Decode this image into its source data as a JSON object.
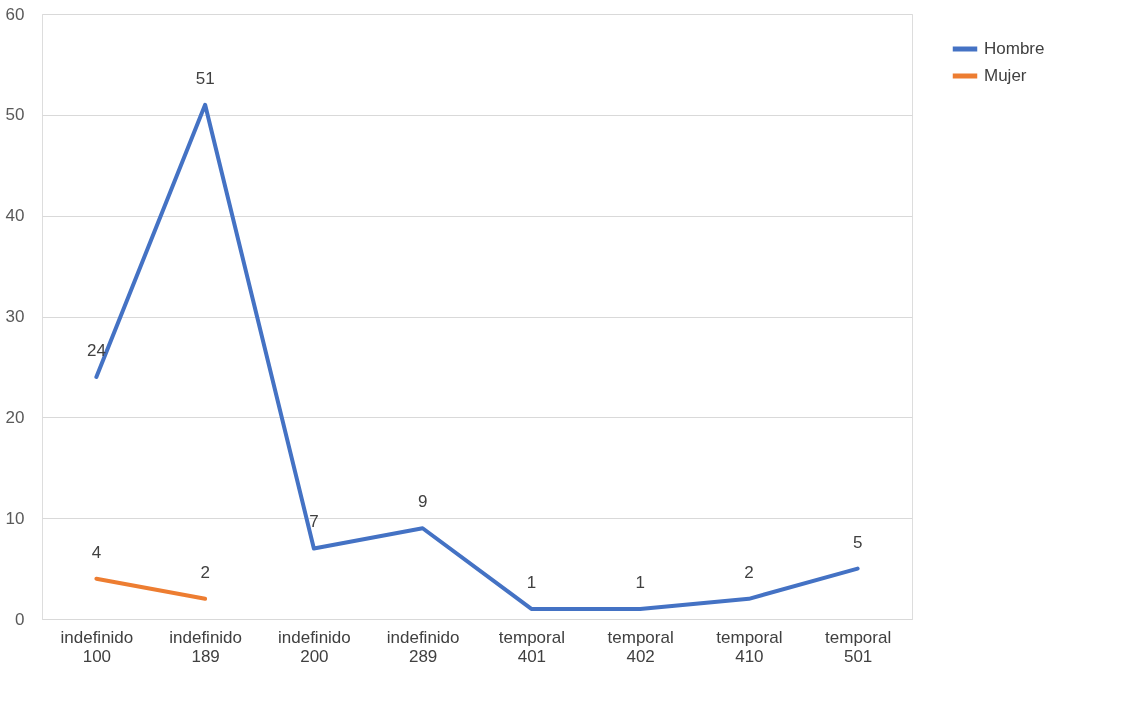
{
  "chart_data": {
    "type": "line",
    "categories": [
      "indefinido 100",
      "indefinido 189",
      "indefinido 200",
      "indefinido 289",
      "temporal 401",
      "temporal 402",
      "temporal 410",
      "temporal 501"
    ],
    "series": [
      {
        "name": "Hombre",
        "color": "#4472c4",
        "values": [
          24,
          51,
          7,
          9,
          1,
          1,
          2,
          5
        ]
      },
      {
        "name": "Mujer",
        "color": "#ed7d31",
        "values": [
          4,
          2,
          null,
          null,
          null,
          null,
          null,
          null
        ]
      }
    ],
    "ylim": [
      0,
      60
    ],
    "yticks": [
      0,
      10,
      20,
      30,
      40,
      50,
      60
    ],
    "grid": "y",
    "legend": "right",
    "data_labels": true,
    "marker": "none",
    "line_style": "solid"
  }
}
